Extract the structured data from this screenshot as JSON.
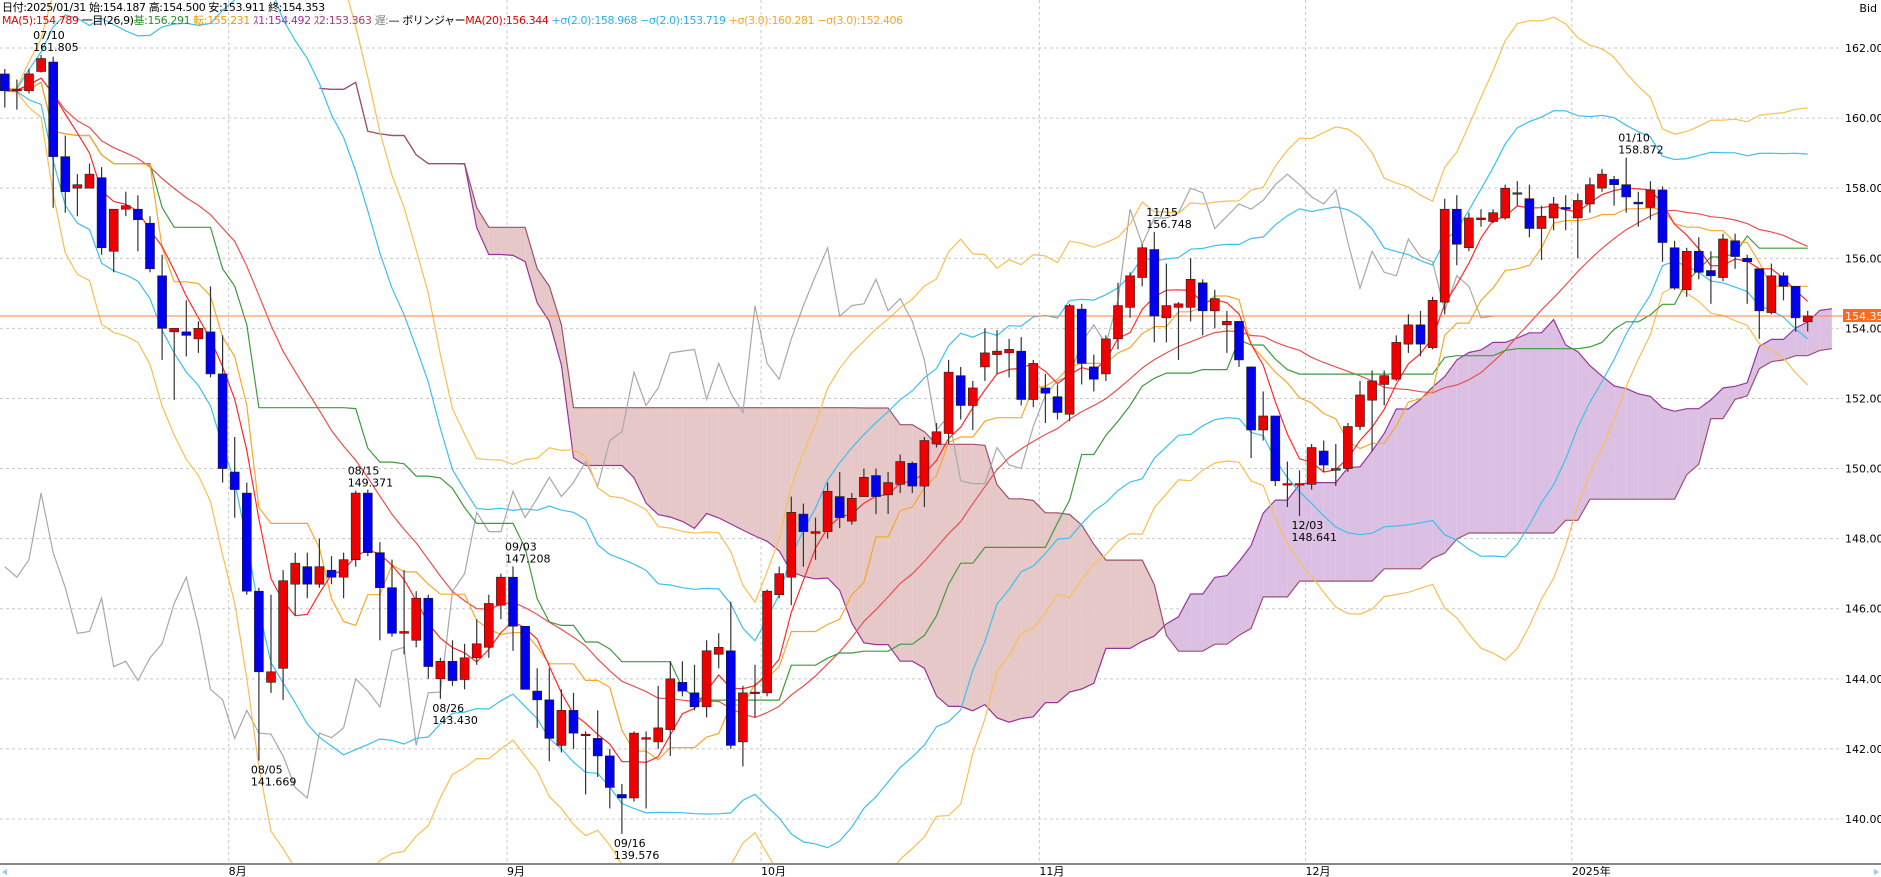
{
  "header": {
    "line1": "日付:2025/01/31 始:154.187 高:154.500 安:153.911 終:154.353",
    "ma5": "MA(5):154.789",
    "ichimoku": " 一目(26,9)",
    "kijun": "基:156.291",
    "tenkan": " 転:155.231",
    "span1": " ｽ1:154.492",
    "span2": " ｽ2:153.363",
    "chikou": " 遅:",
    "bollinger": "— ボリンジャー",
    "ma20": "MA(20):156.344",
    "plus2": " +σ(2.0):158.968",
    "minus2": " −σ(2.0):153.719",
    "plus3": " +σ(3.0):160.281",
    "minus3": " −σ(3.0):152.406",
    "price_type": "Bid"
  },
  "colors": {
    "up": "#ee0000",
    "down": "#0000ee",
    "ma5": "#ff2a2a",
    "ma20": "#e85050",
    "tenkan": "#f7a829",
    "kijun": "#3e9a3e",
    "span1": "#993399",
    "span2": "#a0506a",
    "chikou": "#a8a8a8",
    "sigma2": "#3cc0ec",
    "sigma3": "#f8bf50",
    "cloud_up": "#dcc0e4",
    "cloud_down": "#e6c8c8",
    "price_line": "#ff8040"
  },
  "chart_data": {
    "type": "candlestick",
    "title": "",
    "ylabel": "Bid",
    "ylim": [
      140,
      162
    ],
    "yticks": [
      "140.000",
      "142.000",
      "144.000",
      "146.000",
      "148.000",
      "150.000",
      "152.000",
      "154.000",
      "156.000",
      "158.000",
      "160.000",
      "162.000"
    ],
    "grid": true,
    "months": [
      {
        "label": "8月",
        "index": 19
      },
      {
        "label": "9月",
        "index": 42
      },
      {
        "label": "10月",
        "index": 63
      },
      {
        "label": "11月",
        "index": 86
      },
      {
        "label": "12月",
        "index": 108
      },
      {
        "label": "2025年",
        "index": 130
      }
    ],
    "current_price": {
      "value": 154.353,
      "label": "154.353"
    },
    "annotations": [
      {
        "date": "07/10",
        "value": "161.805",
        "index": 3,
        "pos": "above"
      },
      {
        "date": "08/05",
        "value": "141.669",
        "index": 21,
        "pos": "below"
      },
      {
        "date": "08/15",
        "value": "149.371",
        "index": 29,
        "pos": "above"
      },
      {
        "date": "08/26",
        "value": "143.430",
        "index": 36,
        "pos": "below"
      },
      {
        "date": "09/03",
        "value": "147.208",
        "index": 42,
        "pos": "above"
      },
      {
        "date": "09/16",
        "value": "139.576",
        "index": 51,
        "pos": "below"
      },
      {
        "date": "11/15",
        "value": "156.748",
        "index": 95,
        "pos": "above"
      },
      {
        "date": "12/03",
        "value": "148.641",
        "index": 107,
        "pos": "below"
      },
      {
        "date": "01/10",
        "value": "158.872",
        "index": 134,
        "pos": "above"
      }
    ],
    "ohlc_fields": [
      "open",
      "high",
      "low",
      "close"
    ],
    "candles": [
      [
        161.26,
        161.4,
        160.3,
        160.78
      ],
      [
        160.78,
        161.1,
        160.24,
        160.82
      ],
      [
        160.78,
        161.4,
        160.7,
        161.26
      ],
      [
        161.33,
        161.805,
        161.3,
        161.7
      ],
      [
        161.6,
        161.75,
        157.44,
        158.9
      ],
      [
        158.9,
        159.5,
        157.3,
        157.9
      ],
      [
        158.0,
        158.4,
        157.2,
        158.1
      ],
      [
        158.0,
        158.7,
        158.0,
        158.4
      ],
      [
        158.3,
        158.6,
        156.1,
        156.3
      ],
      [
        156.2,
        157.4,
        155.6,
        157.4
      ],
      [
        157.4,
        157.9,
        157.2,
        157.5
      ],
      [
        157.4,
        157.8,
        156.2,
        157.1
      ],
      [
        157.0,
        157.2,
        155.6,
        155.7
      ],
      [
        155.5,
        156.1,
        153.1,
        154.0
      ],
      [
        153.9,
        154.0,
        151.96,
        154.0
      ],
      [
        153.9,
        154.8,
        153.2,
        153.8
      ],
      [
        153.7,
        154.2,
        153.3,
        154.0
      ],
      [
        153.9,
        155.2,
        152.6,
        152.7
      ],
      [
        152.7,
        153.8,
        149.6,
        150.0
      ],
      [
        149.9,
        150.9,
        148.6,
        149.4
      ],
      [
        149.3,
        149.6,
        146.4,
        146.5
      ],
      [
        146.5,
        146.6,
        141.669,
        144.2
      ],
      [
        143.9,
        146.4,
        143.6,
        144.2
      ],
      [
        144.3,
        147.1,
        143.4,
        146.8
      ],
      [
        146.7,
        147.6,
        145.8,
        147.3
      ],
      [
        147.2,
        147.6,
        146.3,
        146.7
      ],
      [
        146.7,
        148.0,
        146.6,
        147.2
      ],
      [
        147.1,
        147.5,
        146.7,
        146.9
      ],
      [
        146.9,
        147.6,
        146.3,
        147.4
      ],
      [
        147.4,
        149.371,
        147.2,
        149.3
      ],
      [
        149.3,
        149.4,
        147.5,
        147.6
      ],
      [
        147.6,
        147.9,
        145.1,
        146.6
      ],
      [
        146.6,
        147.4,
        145.2,
        145.3
      ],
      [
        145.3,
        147.1,
        144.7,
        145.35
      ],
      [
        145.1,
        146.5,
        144.9,
        146.3
      ],
      [
        146.3,
        146.4,
        144.0,
        144.35
      ],
      [
        144.0,
        144.6,
        143.43,
        144.5
      ],
      [
        144.5,
        145.1,
        143.8,
        143.95
      ],
      [
        143.98,
        145.0,
        143.7,
        144.6
      ],
      [
        144.6,
        145.7,
        144.4,
        145.0
      ],
      [
        144.9,
        146.4,
        144.6,
        146.15
      ],
      [
        146.1,
        147.0,
        145.7,
        146.9
      ],
      [
        146.9,
        147.208,
        144.8,
        145.5
      ],
      [
        145.5,
        145.5,
        143.7,
        143.7
      ],
      [
        143.65,
        144.3,
        142.6,
        143.4
      ],
      [
        143.4,
        144.3,
        141.65,
        142.3
      ],
      [
        142.1,
        143.7,
        141.9,
        143.1
      ],
      [
        143.1,
        143.6,
        142.0,
        142.45
      ],
      [
        142.4,
        142.5,
        140.7,
        142.42
      ],
      [
        142.3,
        143.1,
        141.2,
        141.8
      ],
      [
        141.8,
        142.0,
        140.3,
        140.9
      ],
      [
        140.7,
        141.0,
        139.576,
        140.6
      ],
      [
        140.6,
        142.5,
        140.5,
        142.45
      ],
      [
        142.3,
        142.5,
        140.3,
        142.32
      ],
      [
        142.2,
        143.8,
        142.0,
        142.6
      ],
      [
        142.55,
        144.5,
        141.8,
        144.0
      ],
      [
        143.9,
        144.5,
        143.5,
        143.65
      ],
      [
        143.6,
        144.4,
        143.1,
        143.2
      ],
      [
        143.2,
        145.1,
        142.9,
        144.8
      ],
      [
        144.7,
        145.3,
        144.3,
        144.9
      ],
      [
        144.8,
        146.2,
        142.0,
        142.1
      ],
      [
        142.2,
        143.8,
        141.5,
        143.6
      ],
      [
        143.6,
        144.4,
        142.9,
        143.62
      ],
      [
        143.6,
        146.55,
        143.5,
        146.5
      ],
      [
        146.4,
        147.2,
        146.3,
        147.0
      ],
      [
        146.9,
        149.2,
        146.1,
        148.75
      ],
      [
        148.7,
        149.0,
        147.2,
        148.2
      ],
      [
        148.15,
        148.6,
        147.4,
        148.2
      ],
      [
        148.2,
        149.6,
        148.0,
        149.35
      ],
      [
        149.2,
        149.9,
        148.3,
        148.6
      ],
      [
        148.5,
        149.3,
        148.4,
        149.15
      ],
      [
        149.2,
        150.0,
        149.2,
        149.75
      ],
      [
        149.8,
        150.0,
        148.7,
        149.2
      ],
      [
        149.25,
        149.9,
        148.7,
        149.6
      ],
      [
        149.55,
        150.4,
        149.3,
        150.2
      ],
      [
        150.15,
        150.2,
        149.3,
        149.5
      ],
      [
        149.5,
        150.9,
        148.9,
        150.8
      ],
      [
        150.7,
        151.3,
        150.6,
        151.05
      ],
      [
        151.0,
        153.1,
        150.7,
        152.75
      ],
      [
        152.65,
        152.9,
        151.4,
        151.8
      ],
      [
        151.8,
        152.5,
        151.1,
        152.3
      ],
      [
        152.9,
        154.0,
        152.5,
        153.3
      ],
      [
        153.25,
        153.95,
        152.7,
        153.35
      ],
      [
        153.3,
        153.7,
        152.6,
        153.4
      ],
      [
        153.35,
        153.75,
        151.8,
        151.97
      ],
      [
        151.97,
        153.1,
        151.75,
        153.0
      ],
      [
        152.3,
        152.7,
        151.3,
        152.15
      ],
      [
        152.05,
        152.4,
        151.4,
        151.6
      ],
      [
        151.55,
        154.7,
        151.35,
        154.65
      ],
      [
        154.55,
        154.7,
        152.4,
        153.0
      ],
      [
        152.9,
        153.25,
        152.2,
        152.55
      ],
      [
        152.7,
        153.8,
        152.5,
        153.7
      ],
      [
        153.7,
        155.3,
        153.4,
        154.65
      ],
      [
        154.6,
        155.6,
        154.3,
        155.5
      ],
      [
        155.45,
        156.4,
        155.2,
        156.3
      ],
      [
        156.25,
        156.748,
        153.6,
        154.35
      ],
      [
        154.3,
        155.85,
        153.6,
        154.65
      ],
      [
        154.6,
        154.75,
        153.1,
        154.7
      ],
      [
        154.6,
        156.0,
        154.2,
        155.4
      ],
      [
        155.3,
        155.4,
        153.8,
        154.5
      ],
      [
        154.5,
        155.1,
        154.0,
        154.85
      ],
      [
        154.1,
        154.5,
        153.3,
        154.2
      ],
      [
        154.2,
        154.2,
        152.9,
        153.1
      ],
      [
        152.9,
        152.9,
        150.3,
        151.1
      ],
      [
        151.1,
        152.2,
        150.8,
        151.5
      ],
      [
        151.5,
        151.5,
        149.5,
        149.65
      ],
      [
        149.55,
        150.2,
        148.9,
        149.57
      ],
      [
        149.55,
        149.95,
        148.641,
        149.57
      ],
      [
        149.55,
        150.7,
        149.4,
        150.6
      ],
      [
        150.5,
        150.8,
        149.9,
        150.1
      ],
      [
        149.95,
        150.7,
        149.5,
        150.0
      ],
      [
        150.0,
        151.3,
        149.9,
        151.2
      ],
      [
        151.2,
        152.5,
        151.1,
        152.1
      ],
      [
        151.95,
        152.8,
        150.5,
        152.5
      ],
      [
        152.4,
        152.8,
        151.8,
        152.65
      ],
      [
        152.55,
        153.8,
        152.5,
        153.6
      ],
      [
        153.55,
        154.4,
        153.3,
        154.1
      ],
      [
        154.1,
        154.5,
        153.2,
        153.55
      ],
      [
        153.45,
        154.9,
        153.4,
        154.8
      ],
      [
        154.75,
        157.7,
        154.4,
        157.4
      ],
      [
        157.4,
        157.8,
        155.8,
        156.4
      ],
      [
        156.3,
        157.3,
        156.2,
        157.15
      ],
      [
        157.1,
        157.4,
        156.9,
        157.15
      ],
      [
        157.05,
        157.4,
        157.0,
        157.3
      ],
      [
        157.15,
        158.1,
        157.1,
        158.0
      ],
      [
        157.85,
        158.2,
        157.5,
        157.87
      ],
      [
        157.7,
        158.1,
        156.6,
        156.85
      ],
      [
        156.85,
        157.5,
        155.95,
        157.2
      ],
      [
        157.15,
        157.75,
        156.8,
        157.55
      ],
      [
        157.45,
        157.8,
        156.8,
        157.4
      ],
      [
        157.15,
        157.85,
        156.0,
        157.65
      ],
      [
        157.55,
        158.3,
        157.3,
        158.1
      ],
      [
        158.0,
        158.55,
        157.9,
        158.4
      ],
      [
        158.25,
        158.35,
        157.5,
        158.1
      ],
      [
        158.1,
        158.872,
        157.3,
        157.75
      ],
      [
        157.6,
        157.9,
        156.9,
        157.55
      ],
      [
        157.45,
        158.2,
        157.1,
        157.95
      ],
      [
        157.95,
        158.05,
        155.9,
        156.45
      ],
      [
        156.3,
        156.5,
        155.1,
        155.15
      ],
      [
        155.1,
        156.3,
        154.9,
        156.2
      ],
      [
        156.2,
        156.6,
        155.4,
        155.6
      ],
      [
        155.65,
        156.2,
        154.7,
        155.5
      ],
      [
        155.45,
        156.7,
        155.35,
        156.55
      ],
      [
        156.5,
        156.7,
        155.7,
        156.05
      ],
      [
        156.0,
        156.1,
        154.7,
        155.9
      ],
      [
        155.7,
        155.7,
        153.7,
        154.5
      ],
      [
        154.45,
        155.85,
        154.4,
        155.5
      ],
      [
        155.5,
        155.6,
        154.8,
        155.2
      ],
      [
        155.2,
        155.2,
        153.9,
        154.3
      ],
      [
        154.187,
        154.5,
        153.911,
        154.353
      ]
    ],
    "indicators": {
      "ma_short": 5,
      "bollinger_period": 20,
      "bollinger_sigmas": [
        2,
        3
      ],
      "ichimoku": {
        "tenkan": 9,
        "kijun": 26,
        "span2": 52,
        "shift": 26
      }
    }
  }
}
